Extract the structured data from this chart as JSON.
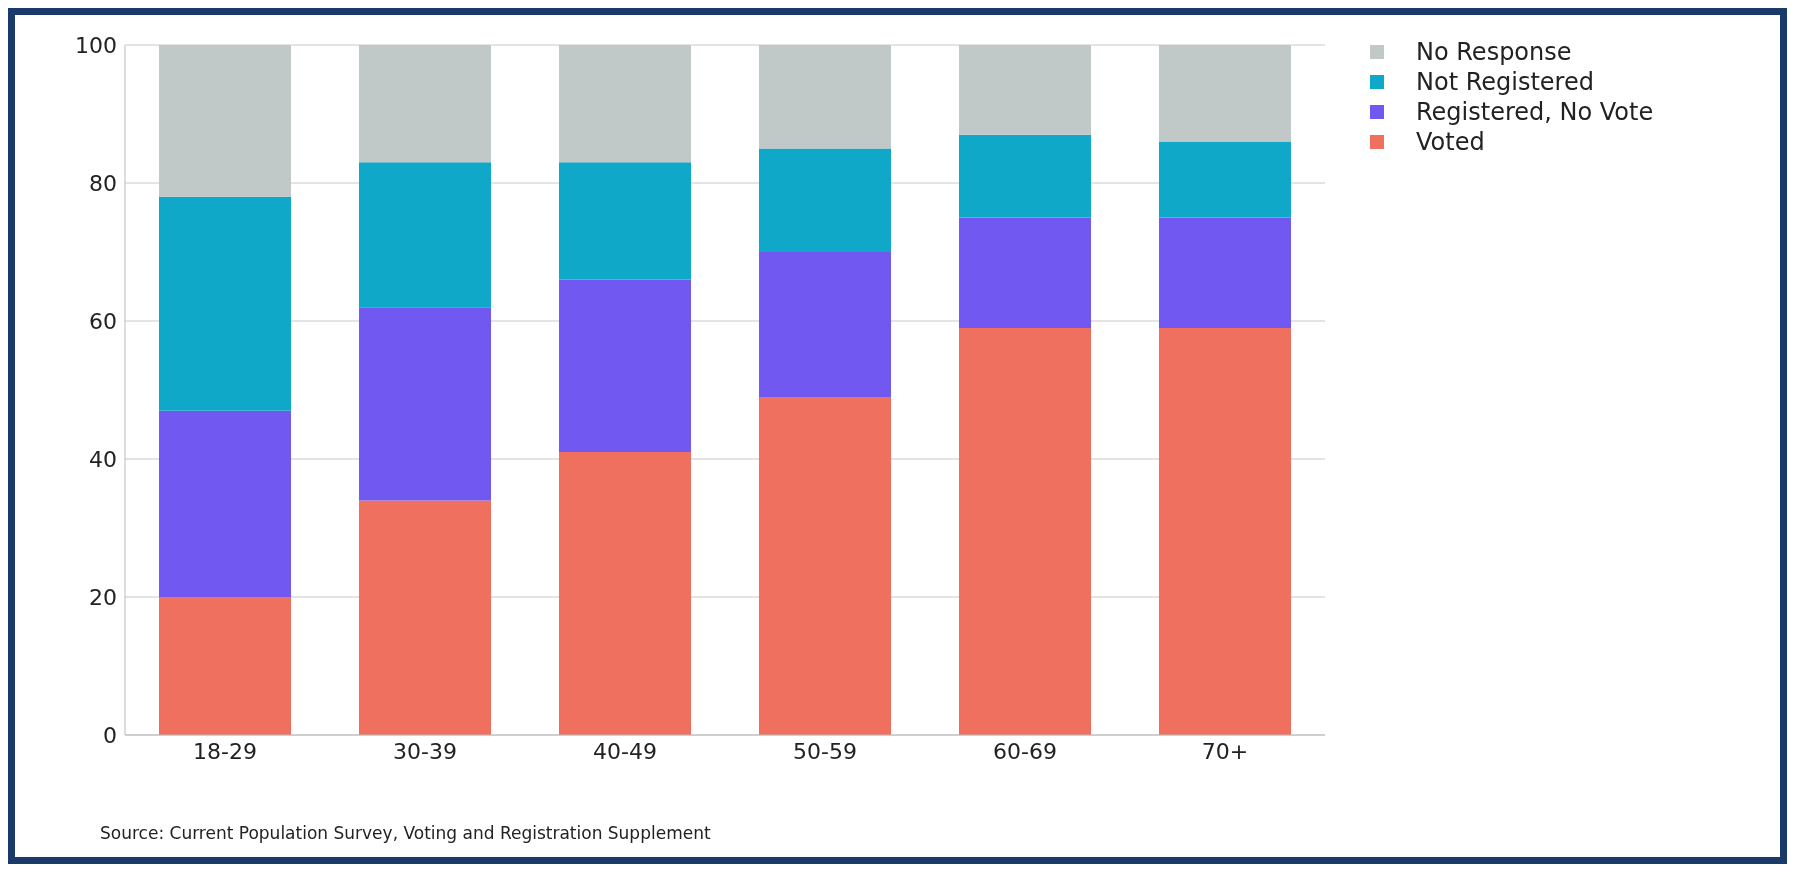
{
  "chart_data": {
    "type": "bar",
    "stacked": true,
    "categories": [
      "18-29",
      "30-39",
      "40-49",
      "50-59",
      "60-69",
      "70+"
    ],
    "series": [
      {
        "name": "Voted",
        "color": "#f07060",
        "values": [
          20,
          34,
          41,
          49,
          59,
          59
        ]
      },
      {
        "name": "Registered, No Vote",
        "color": "#7058f0",
        "values": [
          27,
          28,
          25,
          21,
          16,
          16
        ]
      },
      {
        "name": "Not Registered",
        "color": "#10a8c8",
        "values": [
          31,
          21,
          17,
          15,
          12,
          11
        ]
      },
      {
        "name": "No Response",
        "color": "#c0c8c8",
        "values": [
          22,
          17,
          17,
          15,
          13,
          14
        ]
      }
    ],
    "ylim": [
      0,
      100
    ],
    "yticks": [
      0,
      20,
      40,
      60,
      80,
      100
    ],
    "grid": "y",
    "legend": "top right",
    "annotations": [
      "Source: Current Population Survey, Voting and Registration Supplement"
    ]
  }
}
